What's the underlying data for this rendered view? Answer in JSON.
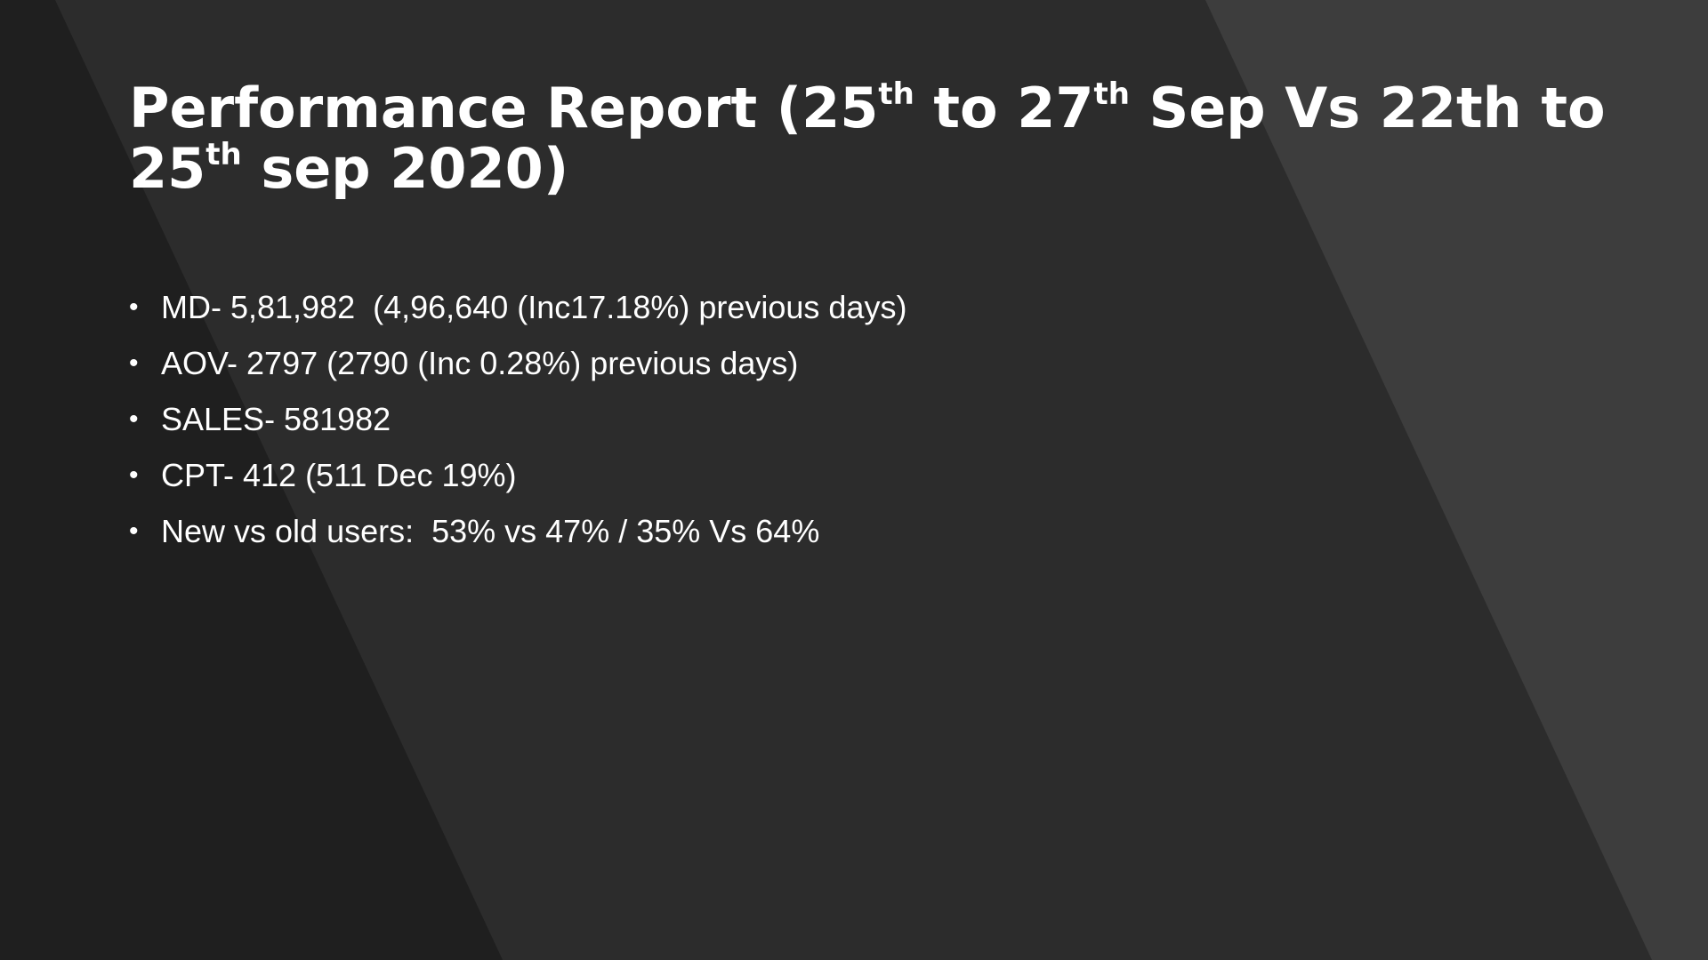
{
  "slide": {
    "title": {
      "part1": "Performance Report (25",
      "sup1": "th",
      "part2": " to 27",
      "sup2": "th",
      "part3": " Sep Vs 22th to 25",
      "sup3": "th",
      "part4": " sep 2020)"
    },
    "bullet_glyph": "•",
    "bullets": [
      "MD- 5,81,982  (4,96,640 (Inc17.18%) previous days)",
      "AOV- 2797 (2790 (Inc 0.28%) previous days)",
      "SALES- 581982",
      "CPT- 412 (511 Dec 19%)",
      "New vs old users:  53% vs 47% / 35% Vs 64%"
    ]
  },
  "colors": {
    "background": "#2c2c2c",
    "left_band": "#1f1f1f",
    "right_band": "#3d3d3d",
    "text": "#ffffff"
  }
}
